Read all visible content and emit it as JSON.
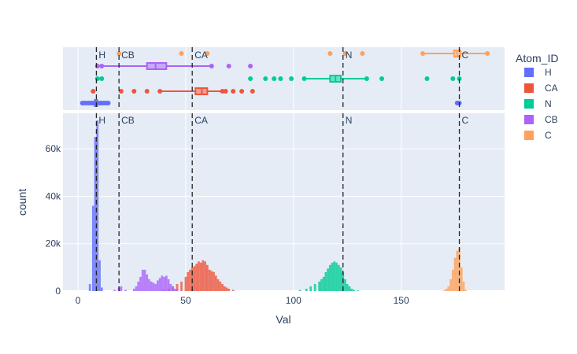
{
  "chart_data": {
    "type": "histogram",
    "xlabel": "Val",
    "ylabel": "count",
    "xlim": [
      -7,
      198
    ],
    "ylim": [
      0,
      75000
    ],
    "x_ticks": [
      0,
      50,
      100,
      150
    ],
    "y_ticks": [
      0,
      20000,
      40000,
      60000
    ],
    "y_tick_labels": [
      "0",
      "20k",
      "40k",
      "60k"
    ],
    "grid": true,
    "legend": {
      "title": "Atom_ID",
      "placement": "right"
    },
    "series": [
      {
        "name": "H",
        "color": "#636efa",
        "bars": [
          [
            5.5,
            3000
          ],
          [
            7,
            36000
          ],
          [
            8,
            65000
          ],
          [
            9,
            72000
          ],
          [
            10,
            13000
          ],
          [
            11,
            1500
          ]
        ],
        "box": {
          "q1": 7.8,
          "median": 8.3,
          "q3": 8.8,
          "whisker_low": 6.9,
          "whisker_high": 9.8,
          "outliers": [
            2,
            3,
            4,
            5,
            6,
            10.5,
            11,
            12,
            13,
            14,
            176,
            177
          ]
        }
      },
      {
        "name": "CA",
        "color": "#ef553b",
        "bars": [
          [
            40,
            500
          ],
          [
            42,
            1000
          ],
          [
            44,
            2000
          ],
          [
            46,
            3000
          ],
          [
            48,
            4000
          ],
          [
            50,
            6000
          ],
          [
            51,
            8000
          ],
          [
            52,
            9000
          ],
          [
            53,
            10000
          ],
          [
            54,
            10500
          ],
          [
            55,
            11500
          ],
          [
            56,
            12500
          ],
          [
            57,
            12000
          ],
          [
            58,
            13000
          ],
          [
            59,
            12500
          ],
          [
            60,
            11000
          ],
          [
            61,
            9000
          ],
          [
            62,
            8500
          ],
          [
            63,
            8000
          ],
          [
            64,
            6500
          ],
          [
            65,
            5000
          ],
          [
            66,
            4000
          ],
          [
            67,
            3000
          ],
          [
            68,
            2000
          ],
          [
            69,
            1500
          ],
          [
            70,
            1000
          ],
          [
            72,
            500
          ]
        ],
        "box": {
          "q1": 54.5,
          "median": 57.5,
          "q3": 60,
          "whisker_low": 38,
          "whisker_high": 68.5,
          "outliers": [
            7,
            20,
            26,
            32,
            67,
            72,
            76,
            81
          ]
        }
      },
      {
        "name": "N",
        "color": "#00cc96",
        "bars": [
          [
            103,
            500
          ],
          [
            106,
            1000
          ],
          [
            108,
            2000
          ],
          [
            110,
            3000
          ],
          [
            112,
            4000
          ],
          [
            113,
            5000
          ],
          [
            114,
            6000
          ],
          [
            115,
            8000
          ],
          [
            116,
            9500
          ],
          [
            117,
            11000
          ],
          [
            118,
            12000
          ],
          [
            119,
            12500
          ],
          [
            120,
            12000
          ],
          [
            121,
            11000
          ],
          [
            122,
            10000
          ],
          [
            123,
            8000
          ],
          [
            124,
            5000
          ],
          [
            125,
            3000
          ],
          [
            126,
            2000
          ],
          [
            127,
            1000
          ],
          [
            128,
            500
          ],
          [
            130,
            300
          ]
        ],
        "box": {
          "q1": 117,
          "median": 119.5,
          "q3": 122,
          "whisker_low": 105,
          "whisker_high": 134,
          "outliers": [
            9,
            11,
            80,
            87,
            91,
            94,
            99,
            141,
            162,
            174,
            177
          ]
        }
      },
      {
        "name": "CB",
        "color": "#ab63fa",
        "bars": [
          [
            17,
            500
          ],
          [
            19,
            1500
          ],
          [
            20,
            2000
          ],
          [
            22,
            500
          ],
          [
            26,
            1000
          ],
          [
            27,
            2000
          ],
          [
            28,
            4000
          ],
          [
            29,
            6000
          ],
          [
            30,
            9000
          ],
          [
            31,
            9000
          ],
          [
            32,
            7000
          ],
          [
            33,
            5000
          ],
          [
            34,
            4000
          ],
          [
            35,
            3500
          ],
          [
            36,
            3000
          ],
          [
            37,
            4500
          ],
          [
            38,
            5500
          ],
          [
            39,
            6500
          ],
          [
            40,
            6000
          ],
          [
            41,
            6500
          ],
          [
            42,
            5000
          ],
          [
            43,
            3000
          ],
          [
            44,
            2000
          ],
          [
            45,
            1000
          ],
          [
            46,
            500
          ]
        ],
        "box": {
          "q1": 32,
          "median": 36,
          "q3": 41,
          "whisker_low": 11,
          "whisker_high": 62,
          "outliers": [
            9,
            70,
            80
          ]
        }
      },
      {
        "name": "C",
        "color": "#ffa15a",
        "bars": [
          [
            170,
            300
          ],
          [
            171,
            1000
          ],
          [
            172,
            2000
          ],
          [
            173,
            5000
          ],
          [
            174,
            9000
          ],
          [
            175,
            14000
          ],
          [
            176,
            17000
          ],
          [
            177,
            18000
          ],
          [
            178,
            10000
          ],
          [
            179,
            4000
          ],
          [
            180,
            500
          ]
        ],
        "box": {
          "q1": 174.5,
          "median": 176,
          "q3": 177.5,
          "whisker_low": 160,
          "whisker_high": 190,
          "outliers": [
            19,
            48,
            60,
            117,
            124,
            132
          ]
        }
      }
    ],
    "reference_lines": [
      {
        "label": "H",
        "x": 8.5
      },
      {
        "label": "CB",
        "x": 19
      },
      {
        "label": "CA",
        "x": 53
      },
      {
        "label": "N",
        "x": 123
      },
      {
        "label": "C",
        "x": 177
      }
    ]
  }
}
